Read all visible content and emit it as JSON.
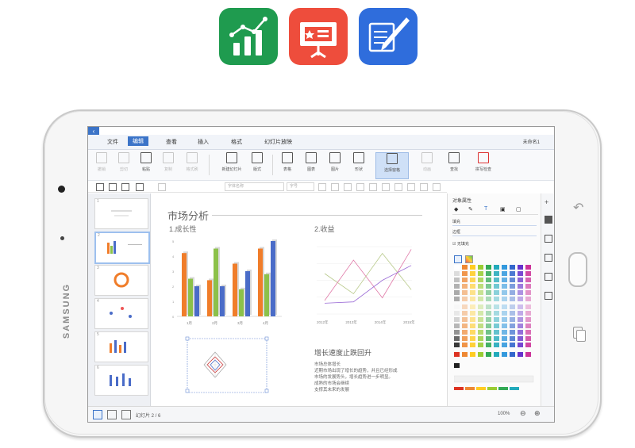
{
  "top_apps": [
    "spreadsheet-app-icon",
    "presentation-app-icon",
    "writer-app-icon"
  ],
  "device": {
    "brand": "SAMSUNG"
  },
  "menubar": {
    "items": [
      "文件",
      "编辑",
      "查看",
      "插入",
      "格式",
      "幻灯片放映"
    ],
    "active_item": "编辑",
    "window_title": "未命名1"
  },
  "ribbon": {
    "groups": [
      {
        "label": "撤销",
        "enabled": false
      },
      {
        "label": "剪切",
        "enabled": false
      },
      {
        "label": "粘贴",
        "enabled": true
      },
      {
        "label": "复制",
        "enabled": false
      },
      {
        "label": "格式刷",
        "enabled": false
      },
      {
        "label": "新建幻灯片",
        "enabled": true
      },
      {
        "label": "版式",
        "enabled": true
      },
      {
        "label": "表格",
        "enabled": true
      },
      {
        "label": "图表",
        "enabled": true
      },
      {
        "label": "图片",
        "enabled": true
      },
      {
        "label": "形状",
        "enabled": true
      },
      {
        "label": "选择窗格",
        "enabled": true,
        "selected": true
      },
      {
        "label": "动画",
        "enabled": false
      },
      {
        "label": "查找",
        "enabled": true
      },
      {
        "label": "拼写检查",
        "enabled": true
      }
    ]
  },
  "format_bar": {
    "font_placeholder": "字体名称",
    "size_placeholder": "字号"
  },
  "slide_panel": {
    "slide_count": 6,
    "selected_index": 2
  },
  "slide": {
    "title": "市场分析",
    "section1": "1.成长性",
    "section2": "2.收益",
    "section3": "增长速度止跌回升",
    "body_lines": [
      "市场总体增长",
      "近期市场出现了增长的趋势，并且已经形成",
      "市场的发展势头，增长趋势进一步明显。",
      "成熟的市场会继续",
      "支撑其未来的发展"
    ],
    "bar_axis_labels": [
      "1月",
      "2月",
      "3月",
      "4月"
    ],
    "line_axis_labels": [
      "2012年",
      "2013年",
      "2014年",
      "2015年"
    ]
  },
  "chart_data": [
    {
      "type": "bar",
      "categories": [
        "1月",
        "2月",
        "3月",
        "4月"
      ],
      "series": [
        {
          "values": [
            4.2,
            2.4,
            3.5,
            4.5
          ]
        },
        {
          "values": [
            2.5,
            4.5,
            1.8,
            2.8
          ]
        },
        {
          "values": [
            2.0,
            2.0,
            3.0,
            5.0
          ]
        }
      ],
      "ylim": [
        0,
        5
      ]
    },
    {
      "type": "line",
      "categories": [
        "2012年",
        "2013年",
        "2014年",
        "2015年"
      ],
      "series": [
        {
          "values": [
            3.0,
            1.5,
            4.5,
            1.8
          ]
        },
        {
          "values": [
            1.0,
            4.0,
            1.2,
            4.8
          ]
        },
        {
          "values": [
            0.8,
            0.9,
            2.5,
            3.6
          ]
        }
      ],
      "ylim": [
        0,
        5
      ]
    }
  ],
  "right_panel": {
    "header": "对象属性",
    "fill_label": "填充",
    "line_label": "边框",
    "no_fill_label": "无填充"
  },
  "statusbar": {
    "left": "幻灯片 2 / 6",
    "zoom": "100%"
  },
  "colors": {
    "accent": "#3c74c8",
    "bar_orange": "#f07d2a",
    "bar_green": "#8cc14a",
    "bar_blue": "#4a6cc8"
  }
}
